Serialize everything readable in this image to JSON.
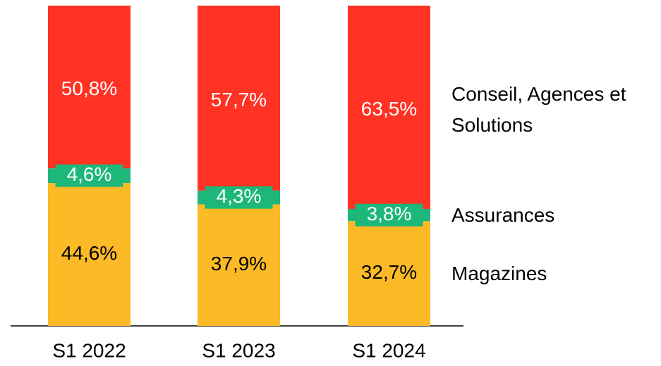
{
  "chart_data": {
    "type": "stacked_bar",
    "categories": [
      "S1 2022",
      "S1 2023",
      "S1 2024"
    ],
    "series": [
      {
        "name": "Magazines",
        "color": "#fbba26",
        "values": [
          44.6,
          37.9,
          32.7
        ],
        "value_labels": [
          "44,6%",
          "37,9%",
          "32,7%"
        ]
      },
      {
        "name": "Assurances",
        "color": "#1db77a",
        "values": [
          4.6,
          4.3,
          3.8
        ],
        "value_labels": [
          "4,6%",
          "4,3%",
          "3,8%"
        ]
      },
      {
        "name": "Conseil, Agences et Solutions",
        "color": "#ff3223",
        "values": [
          50.8,
          57.7,
          63.5
        ],
        "value_labels": [
          "50,8%",
          "57,7%",
          "63,5%"
        ]
      }
    ],
    "legend": "right"
  }
}
